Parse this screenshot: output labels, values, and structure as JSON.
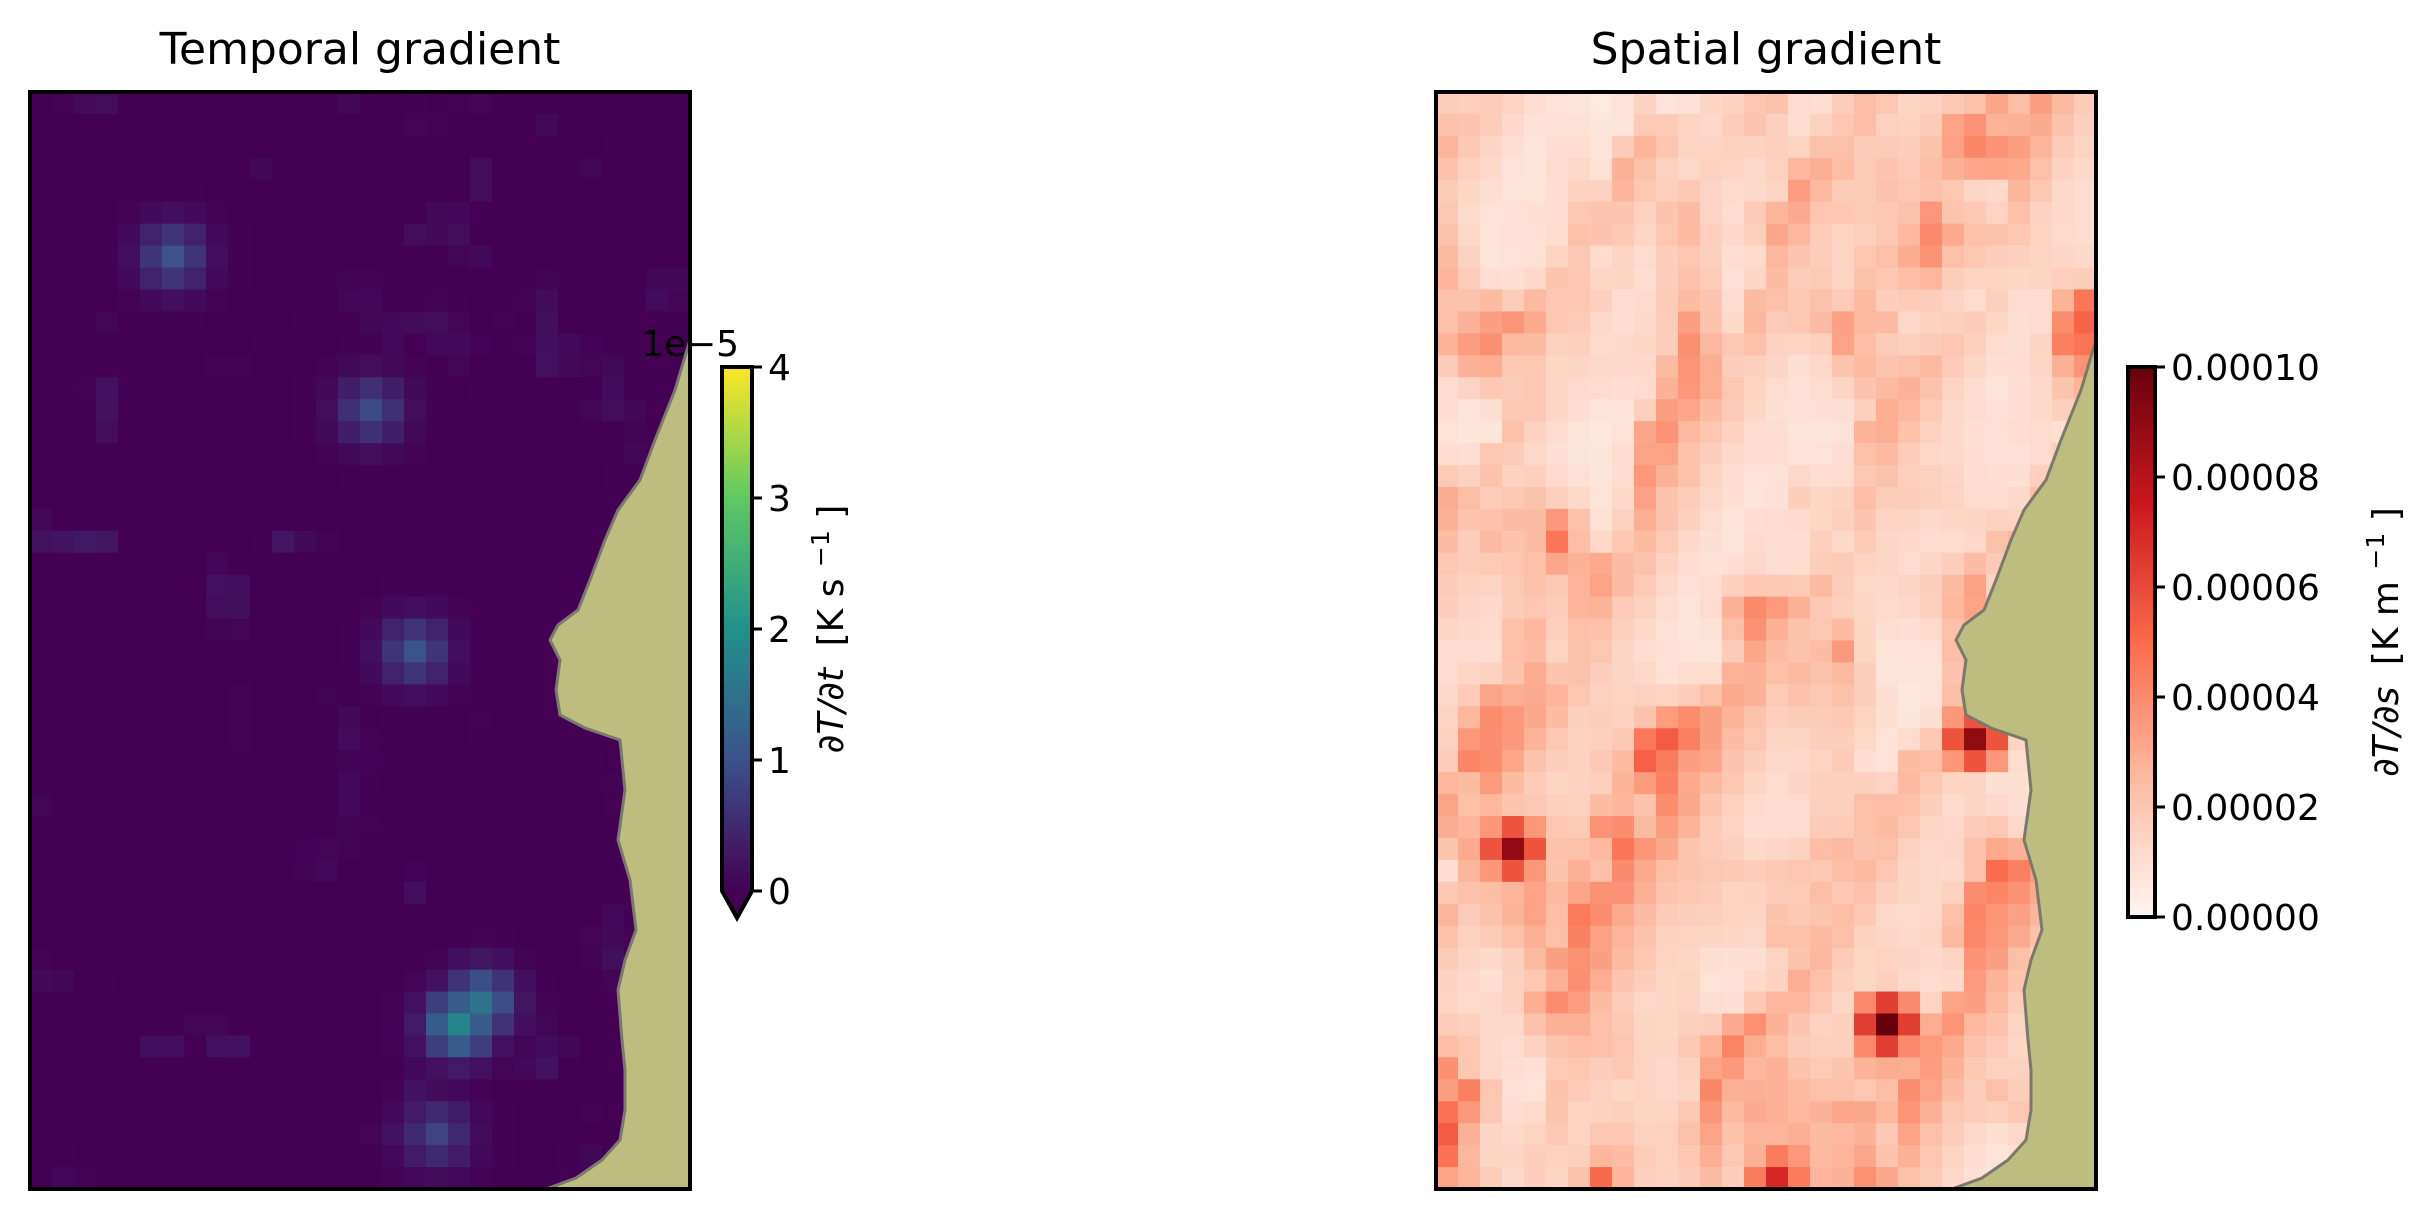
{
  "chart_data": [
    {
      "type": "heatmap",
      "title": "Temporal gradient",
      "colormap": "viridis",
      "grid": {
        "cols": 30,
        "rows": 50
      },
      "colorbar": {
        "label": "∂T/∂t [K s⁻¹]",
        "label_math": "∂T/∂t",
        "label_units": "[K s",
        "label_exp": "−1",
        "label_close": "]",
        "offset_text": "1e−5",
        "ticks": [
          "0",
          "1",
          "2",
          "3",
          "4"
        ],
        "range": [
          0,
          4e-05
        ],
        "extend": "min"
      },
      "hotspots": [
        {
          "col": 6,
          "row": 7,
          "value": 1e-05
        },
        {
          "col": 15,
          "row": 14,
          "value": 9e-06
        },
        {
          "col": 17,
          "row": 25,
          "value": 1e-05
        },
        {
          "col": 19,
          "row": 42,
          "value": 1.8e-05
        },
        {
          "col": 20,
          "row": 41,
          "value": 1.5e-05
        },
        {
          "col": 18,
          "row": 47,
          "value": 8e-06
        }
      ],
      "land_color": "#bcbd7f"
    },
    {
      "type": "heatmap",
      "title": "Spatial gradient",
      "colormap": "Reds",
      "grid": {
        "cols": 30,
        "rows": 50
      },
      "colorbar": {
        "label": "∂T/∂s [K m⁻¹]",
        "label_math": "∂T/∂s",
        "label_units": "[K m",
        "label_exp": "−1",
        "label_close": "]",
        "ticks": [
          "0.00000",
          "0.00002",
          "0.00004",
          "0.00006",
          "0.00008",
          "0.00010"
        ],
        "range": [
          0,
          0.0001
        ]
      },
      "hotspots": [
        {
          "col": 3,
          "row": 34,
          "value": 9e-05
        },
        {
          "col": 20,
          "row": 42,
          "value": 0.0001
        },
        {
          "col": 24,
          "row": 29,
          "value": 9e-05
        },
        {
          "col": 15,
          "row": 49,
          "value": 7e-05
        }
      ],
      "land_color": "#bcbd7f"
    }
  ]
}
